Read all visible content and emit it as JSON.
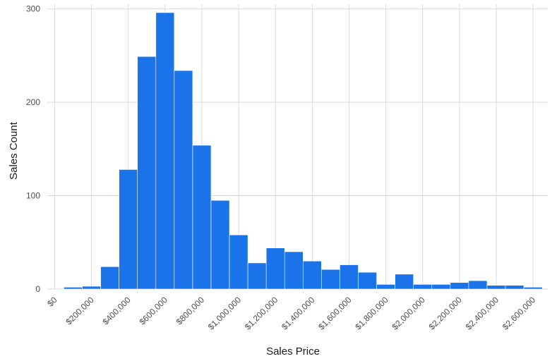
{
  "chart_data": {
    "type": "bar",
    "title": "",
    "xlabel": "Sales Price",
    "ylabel": "Sales Count",
    "grid": true,
    "legend": "none",
    "bar_color": "#1a73e8",
    "xlim": [
      -40000,
      2680000
    ],
    "ylim": [
      0,
      305
    ],
    "x_ticks": [
      0,
      200000,
      400000,
      600000,
      800000,
      1000000,
      1200000,
      1400000,
      1600000,
      1800000,
      2000000,
      2200000,
      2400000,
      2600000
    ],
    "x_tick_labels": [
      "$0",
      "$200,000",
      "$400,000",
      "$600,000",
      "$800,000",
      "$1,000,000",
      "$1,200,000",
      "$1,400,000",
      "$1,600,000",
      "$1,800,000",
      "$2,000,000",
      "$2,200,000",
      "$2,400,000",
      "$2,600,000"
    ],
    "y_ticks": [
      0,
      100,
      200,
      300
    ],
    "y_tick_labels": [
      "0",
      "100",
      "200",
      "300"
    ],
    "bin_width": 100000,
    "bin_centers": [
      100000,
      200000,
      300000,
      400000,
      500000,
      600000,
      700000,
      800000,
      900000,
      1000000,
      1100000,
      1200000,
      1300000,
      1400000,
      1500000,
      1600000,
      1700000,
      1800000,
      1900000,
      2000000,
      2100000,
      2200000,
      2300000,
      2400000,
      2500000,
      2600000
    ],
    "values": [
      2,
      3,
      24,
      128,
      249,
      296,
      234,
      154,
      95,
      58,
      28,
      44,
      40,
      30,
      21,
      26,
      18,
      5,
      16,
      5,
      5,
      7,
      9,
      4,
      4,
      2
    ]
  }
}
